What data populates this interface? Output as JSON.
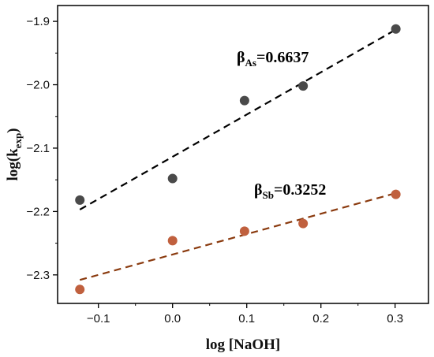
{
  "chart_data": {
    "type": "scatter",
    "xlabel": "log [NaOH]",
    "ylabel": {
      "main": "log(k",
      "sub": "exp",
      "close": ")"
    },
    "xlim": [
      -0.155,
      0.345
    ],
    "ylim": [
      -2.345,
      -1.875
    ],
    "xticks": [
      -0.1,
      0.0,
      0.1,
      0.2,
      0.3
    ],
    "xtick_labels": [
      "−0.1",
      "0.0",
      "0.1",
      "0.2",
      "0.3"
    ],
    "yticks": [
      -2.3,
      -2.2,
      -2.1,
      -2.0,
      -1.9
    ],
    "ytick_labels": [
      "−2.3",
      "−2.2",
      "−2.1",
      "−2.0",
      "−1.9"
    ],
    "grid": false,
    "series": [
      {
        "id": "as",
        "color": "#4a4a4a",
        "line_color": "#000000",
        "x": [
          -0.125,
          0.0,
          0.097,
          0.176,
          0.301
        ],
        "y": [
          -2.182,
          -2.148,
          -2.025,
          -2.002,
          -1.912
        ],
        "fit": {
          "x": [
            -0.125,
            0.301
          ],
          "y": [
            -2.197,
            -1.913
          ]
        },
        "annotation": {
          "prefix": "β",
          "sub": "As",
          "value": "=0.6637",
          "color": "#111111"
        }
      },
      {
        "id": "sb",
        "color": "#c0603e",
        "line_color": "#8a3a0e",
        "x": [
          -0.125,
          0.0,
          0.097,
          0.176,
          0.301
        ],
        "y": [
          -2.323,
          -2.246,
          -2.231,
          -2.219,
          -2.173
        ],
        "fit": {
          "x": [
            -0.125,
            0.301
          ],
          "y": [
            -2.308,
            -2.171
          ]
        },
        "annotation": {
          "prefix": "β",
          "sub": "Sb",
          "value": "=0.3252",
          "color": "#b03a1a"
        }
      }
    ]
  }
}
